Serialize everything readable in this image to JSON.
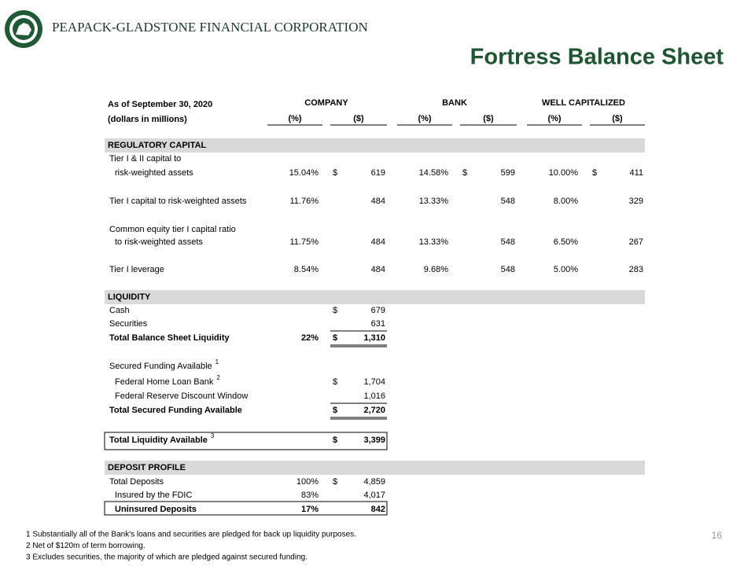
{
  "header": {
    "company": "PEAPACK-GLADSTONE FINANCIAL CORPORATION",
    "title": "Fortress Balance Sheet"
  },
  "table": {
    "as_of": "As of September 30, 2020",
    "units": "(dollars in millions)",
    "groups": [
      "COMPANY",
      "BANK",
      "WELL CAPITALIZED"
    ],
    "subheads": [
      "(%)",
      "($)",
      "(%)",
      "($)",
      "(%)",
      "($)"
    ],
    "currency": "$",
    "rows": [
      {
        "section": "REGULATORY CAPITAL"
      },
      {
        "label": "Tier I & II capital to"
      },
      {
        "label": "risk-weighted assets",
        "indent": true,
        "cells": [
          "15.04%",
          "619",
          "14.58%",
          "599",
          "10.00%",
          "411"
        ],
        "dollar": [
          1,
          3,
          5
        ]
      },
      {
        "label": "Tier I capital to risk-weighted assets",
        "cells": [
          "11.76%",
          "484",
          "13.33%",
          "548",
          "8.00%",
          "329"
        ]
      },
      {
        "label": "Common equity tier I capital ratio"
      },
      {
        "label": "to risk-weighted assets",
        "indent": true,
        "cells": [
          "11.75%",
          "484",
          "13.33%",
          "548",
          "6.50%",
          "267"
        ]
      },
      {
        "label": "Tier I leverage",
        "cells": [
          "8.54%",
          "484",
          "9.68%",
          "548",
          "5.00%",
          "283"
        ]
      },
      {
        "section": "LIQUIDITY"
      },
      {
        "label": "Cash",
        "cells": [
          null,
          "679"
        ],
        "dollar": [
          1
        ]
      },
      {
        "label": "Securities",
        "cells": [
          null,
          "631"
        ],
        "rule": "single"
      },
      {
        "label": "Total Balance Sheet Liquidity",
        "bold": true,
        "cells": [
          "22%",
          "1,310"
        ],
        "dollar": [
          1
        ],
        "rule": "double"
      },
      {
        "label": "Secured Funding Available",
        "sup": "1"
      },
      {
        "label": "Federal Home Loan Bank",
        "sup": "2",
        "indent": true,
        "cells": [
          null,
          "1,704"
        ],
        "dollar": [
          1
        ]
      },
      {
        "label": "Federal Reserve Discount Window",
        "indent": true,
        "cells": [
          null,
          "1,016"
        ],
        "rule": "single"
      },
      {
        "label": "Total Secured Funding Available",
        "bold": true,
        "cells": [
          null,
          "2,720"
        ],
        "dollar": [
          1
        ],
        "rule": "double"
      },
      {
        "label": "Total Liquidity Available",
        "sup": "3",
        "bold": true,
        "cells": [
          null,
          "3,399"
        ],
        "dollar": [
          1
        ],
        "rule": "box"
      },
      {
        "section": "DEPOSIT PROFILE"
      },
      {
        "label": "Total Deposits",
        "cells": [
          "100%",
          "4,859"
        ],
        "dollar": [
          1
        ]
      },
      {
        "label": "Insured by the FDIC",
        "indent": true,
        "cells": [
          "83%",
          "4,017"
        ]
      },
      {
        "label": "Uninsured Deposits",
        "indent": true,
        "bold": true,
        "cells": [
          "17%",
          "842"
        ],
        "rule": "box"
      }
    ]
  },
  "footnotes": [
    "1 Substantially all of the Bank's loans and securities are pledged for back up liquidity purposes.",
    "2 Net of $120m of term borrowing.",
    "3 Excludes securities, the majority of which are pledged against secured funding."
  ],
  "page_number": "16"
}
